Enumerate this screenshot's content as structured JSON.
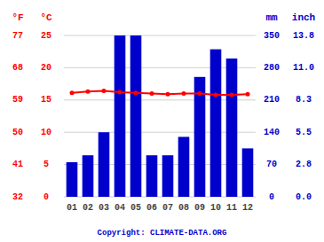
{
  "chart_data": {
    "type": "bar",
    "categories": [
      "01",
      "02",
      "03",
      "04",
      "05",
      "06",
      "07",
      "08",
      "09",
      "10",
      "11",
      "12"
    ],
    "series": [
      {
        "type": "bar",
        "axis": "y2",
        "color": "#0000cc",
        "values": [
          75,
          90,
          140,
          350,
          350,
          90,
          90,
          130,
          260,
          320,
          300,
          105
        ]
      },
      {
        "type": "line",
        "color": "#ff0000",
        "marker": "circle",
        "values": [
          16.1,
          16.3,
          16.4,
          16.2,
          16.1,
          16.0,
          15.9,
          16.0,
          16.0,
          15.8,
          15.8,
          15.9
        ]
      }
    ],
    "ylim": [
      0,
      25
    ],
    "yticks": [
      0,
      5,
      10,
      15,
      20,
      25
    ],
    "yticks_f": [
      {
        "value": 0,
        "label": "32"
      },
      {
        "value": 5,
        "label": "41"
      },
      {
        "value": 10,
        "label": "50"
      },
      {
        "value": 15,
        "label": "59"
      },
      {
        "value": 20,
        "label": "68"
      },
      {
        "value": 25,
        "label": "77"
      }
    ],
    "y_label": "°C",
    "y_label_f": "°F",
    "y2lim": [
      0,
      350
    ],
    "y2ticks": [
      0,
      70,
      140,
      210,
      280,
      350
    ],
    "y2ticks_inch": [
      {
        "value": 0,
        "label": "0.0"
      },
      {
        "value": 70,
        "label": "2.8"
      },
      {
        "value": 140,
        "label": "5.5"
      },
      {
        "value": 210,
        "label": "8.3"
      },
      {
        "value": 280,
        "label": "11.0"
      },
      {
        "value": 350,
        "label": "13.8"
      }
    ],
    "y2_label": "mm",
    "y2_label_inch": "inch",
    "caption": "Copyright: CLIMATE-DATA.ORG",
    "grid": true
  }
}
